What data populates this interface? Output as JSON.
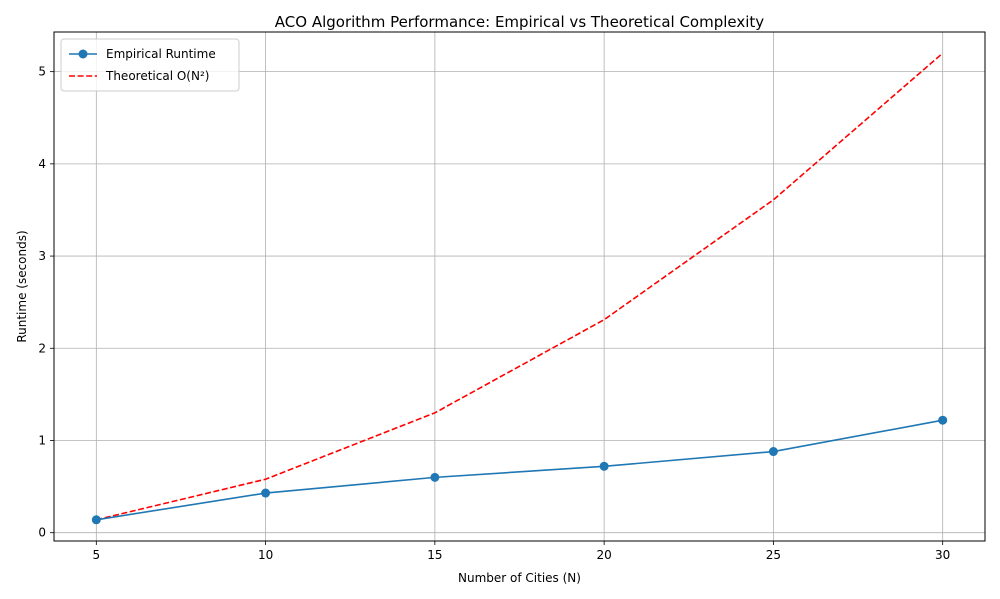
{
  "chart_data": {
    "type": "line",
    "title": "ACO Algorithm Performance: Empirical vs Theoretical Complexity",
    "xlabel": "Number of Cities (N)",
    "ylabel": "Runtime (seconds)",
    "x": [
      5,
      10,
      15,
      20,
      25,
      30
    ],
    "x_ticks": [
      5,
      10,
      15,
      20,
      25,
      30
    ],
    "y_ticks": [
      0,
      1,
      2,
      3,
      4,
      5
    ],
    "xlim": [
      3.75,
      31.25
    ],
    "ylim": [
      -0.09,
      5.43
    ],
    "grid": true,
    "legend_position": "top-left",
    "series": [
      {
        "name": "Empirical Runtime",
        "values": [
          0.14,
          0.43,
          0.6,
          0.72,
          0.88,
          1.22
        ],
        "color": "#1f77b4",
        "style": "solid",
        "marker": "circle"
      },
      {
        "name": "Theoretical O(N²)",
        "values": [
          0.14,
          0.58,
          1.3,
          2.31,
          3.61,
          5.2
        ],
        "color": "#ff0000",
        "style": "dashed",
        "marker": "none"
      }
    ]
  }
}
